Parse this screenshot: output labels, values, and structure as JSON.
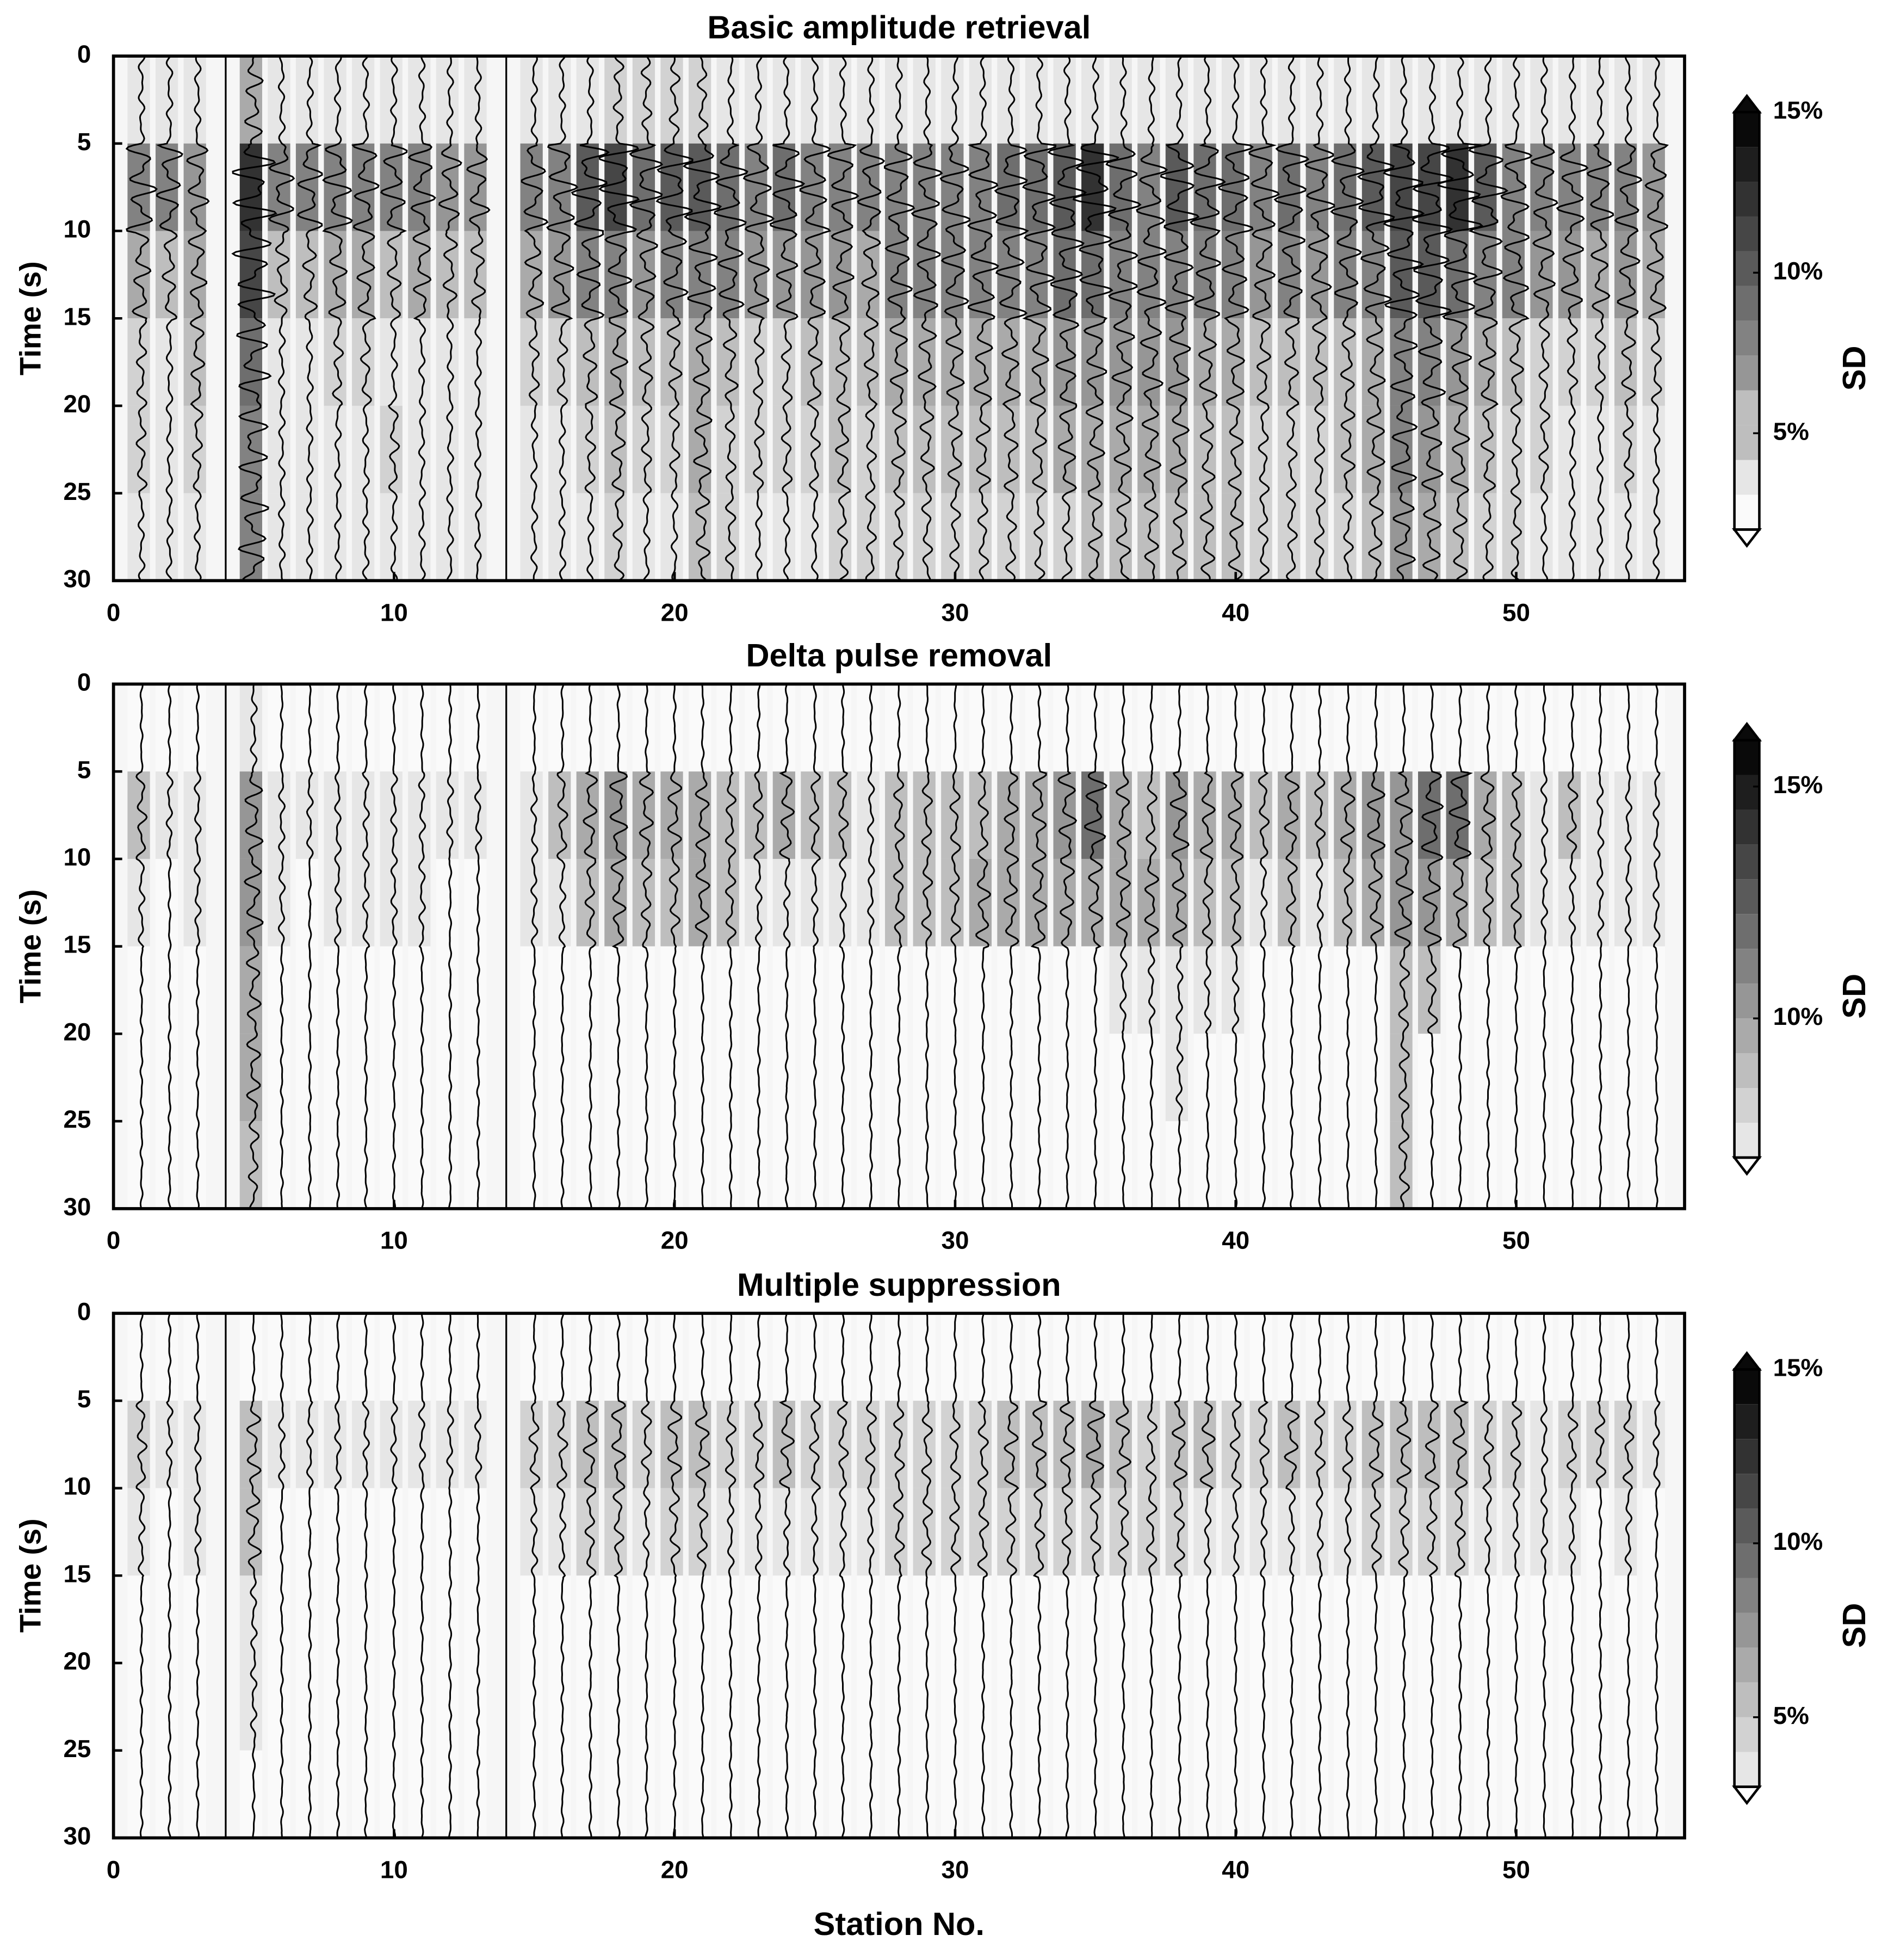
{
  "chart_data": [
    {
      "type": "heatmap-traces",
      "title": "Basic amplitude retrieval",
      "y_label": "Time (s)",
      "xlim": [
        0,
        56
      ],
      "xticks": [
        0,
        10,
        20,
        30,
        40,
        50
      ],
      "ylim": [
        0,
        30
      ],
      "yticks": [
        0,
        5,
        10,
        15,
        20,
        25,
        30
      ],
      "stations": [
        1,
        2,
        3,
        4,
        5,
        6,
        7,
        8,
        9,
        10,
        11,
        12,
        13,
        14,
        15,
        16,
        17,
        18,
        19,
        20,
        21,
        22,
        23,
        24,
        25,
        26,
        27,
        28,
        29,
        30,
        31,
        32,
        33,
        34,
        35,
        36,
        37,
        38,
        39,
        40,
        41,
        42,
        43,
        44,
        45,
        46,
        47,
        48,
        49,
        50,
        51,
        52,
        53,
        54,
        55
      ],
      "time_bins": [
        0,
        5,
        10,
        15,
        20,
        25,
        30
      ],
      "sd": [
        [
          3,
          3,
          3,
          null,
          6,
          3,
          3,
          3,
          3,
          3,
          3,
          3,
          3,
          null,
          3,
          3,
          3,
          4,
          4,
          4,
          4,
          3,
          3,
          3,
          3,
          3,
          3,
          3,
          3,
          3,
          3,
          3,
          3,
          3,
          3,
          3,
          3,
          3,
          3,
          3,
          3,
          3,
          3,
          3,
          3,
          3,
          3,
          3,
          3,
          3,
          3,
          3,
          3,
          3,
          3
        ],
        [
          9,
          8,
          7,
          null,
          13,
          8,
          8,
          9,
          8,
          8,
          8,
          7,
          7,
          null,
          8,
          9,
          11,
          12,
          10,
          11,
          11,
          10,
          9,
          10,
          9,
          9,
          8,
          9,
          9,
          9,
          9,
          10,
          10,
          11,
          13,
          10,
          9,
          11,
          10,
          10,
          9,
          10,
          9,
          10,
          11,
          12,
          12,
          13,
          11,
          9,
          8,
          9,
          8,
          8,
          7
        ],
        [
          6,
          5,
          6,
          null,
          12,
          5,
          5,
          6,
          6,
          5,
          6,
          5,
          5,
          null,
          6,
          7,
          8,
          8,
          7,
          8,
          9,
          8,
          7,
          7,
          7,
          7,
          6,
          8,
          8,
          8,
          9,
          9,
          9,
          10,
          10,
          9,
          9,
          9,
          8,
          8,
          7,
          8,
          7,
          8,
          9,
          11,
          11,
          10,
          9,
          8,
          7,
          7,
          6,
          7,
          6
        ],
        [
          4,
          3,
          5,
          null,
          10,
          3,
          3,
          4,
          4,
          3,
          3,
          3,
          3,
          null,
          4,
          4,
          5,
          6,
          5,
          5,
          6,
          5,
          4,
          4,
          5,
          5,
          5,
          6,
          6,
          6,
          6,
          6,
          6,
          7,
          7,
          7,
          7,
          7,
          6,
          6,
          5,
          5,
          5,
          5,
          6,
          8,
          8,
          7,
          6,
          5,
          4,
          4,
          4,
          5,
          4
        ],
        [
          4,
          3,
          4,
          null,
          9,
          3,
          3,
          3,
          3,
          4,
          3,
          3,
          3,
          null,
          3,
          3,
          4,
          5,
          4,
          4,
          6,
          4,
          4,
          4,
          4,
          5,
          4,
          5,
          5,
          5,
          5,
          5,
          5,
          6,
          6,
          6,
          6,
          6,
          5,
          5,
          4,
          4,
          4,
          5,
          6,
          8,
          7,
          6,
          5,
          4,
          4,
          3,
          3,
          4,
          3
        ],
        [
          3,
          3,
          3,
          null,
          9,
          3,
          3,
          3,
          3,
          3,
          3,
          3,
          3,
          null,
          3,
          3,
          3,
          4,
          3,
          3,
          5,
          4,
          3,
          3,
          3,
          4,
          4,
          4,
          4,
          4,
          4,
          4,
          4,
          4,
          5,
          5,
          5,
          5,
          5,
          5,
          4,
          4,
          4,
          4,
          5,
          7,
          6,
          5,
          4,
          4,
          3,
          3,
          3,
          3,
          3
        ]
      ],
      "colorbar": {
        "label": "SD",
        "lim": [
          2,
          15
        ],
        "ticks": [
          {
            "value": 5,
            "label": "5%"
          },
          {
            "value": 10,
            "label": "10%"
          },
          {
            "value": 15,
            "label": "15%"
          }
        ]
      }
    },
    {
      "type": "heatmap-traces",
      "title": "Delta pulse removal",
      "y_label": "Time (s)",
      "xlim": [
        0,
        56
      ],
      "xticks": [
        0,
        10,
        20,
        30,
        40,
        50
      ],
      "ylim": [
        0,
        30
      ],
      "yticks": [
        0,
        5,
        10,
        15,
        20,
        25,
        30
      ],
      "stations": [
        1,
        2,
        3,
        4,
        5,
        6,
        7,
        8,
        9,
        10,
        11,
        12,
        13,
        14,
        15,
        16,
        17,
        18,
        19,
        20,
        21,
        22,
        23,
        24,
        25,
        26,
        27,
        28,
        29,
        30,
        31,
        32,
        33,
        34,
        35,
        36,
        37,
        38,
        39,
        40,
        41,
        42,
        43,
        44,
        45,
        46,
        47,
        48,
        49,
        50,
        51,
        52,
        53,
        54,
        55
      ],
      "time_bins": [
        0,
        5,
        10,
        15,
        20,
        25,
        30
      ],
      "sd": [
        [
          7,
          7,
          7,
          null,
          8,
          7,
          7,
          7,
          7,
          7,
          7,
          7,
          7,
          null,
          7,
          7,
          7,
          7,
          7,
          7,
          7,
          7,
          7,
          7,
          7,
          7,
          7,
          7,
          7,
          7,
          7,
          7,
          7,
          7,
          7,
          7,
          7,
          7,
          7,
          7,
          7,
          7,
          7,
          7,
          7,
          7,
          7,
          7,
          7,
          7,
          7,
          7,
          7,
          7,
          7
        ],
        [
          9,
          8,
          8,
          null,
          11,
          8,
          8,
          8,
          8,
          8,
          8,
          8,
          8,
          null,
          8,
          9,
          10,
          11,
          10,
          10,
          10,
          9,
          9,
          10,
          9,
          9,
          8,
          9,
          9,
          9,
          9,
          10,
          10,
          11,
          12,
          10,
          9,
          11,
          10,
          10,
          9,
          10,
          9,
          10,
          11,
          11,
          12,
          12,
          10,
          9,
          8,
          9,
          8,
          8,
          8
        ],
        [
          8,
          7,
          8,
          null,
          11,
          8,
          7,
          8,
          8,
          8,
          8,
          7,
          7,
          null,
          8,
          8,
          9,
          10,
          9,
          9,
          10,
          9,
          8,
          8,
          8,
          8,
          8,
          9,
          9,
          9,
          10,
          10,
          10,
          10,
          10,
          10,
          10,
          10,
          9,
          9,
          8,
          9,
          8,
          9,
          10,
          11,
          11,
          10,
          9,
          9,
          8,
          8,
          8,
          8,
          8
        ],
        [
          7,
          7,
          7,
          null,
          10,
          7,
          7,
          7,
          7,
          7,
          7,
          7,
          7,
          null,
          7,
          7,
          7,
          7,
          7,
          7,
          7,
          7,
          7,
          7,
          7,
          7,
          7,
          7,
          7,
          7,
          7,
          7,
          7,
          7,
          7,
          8,
          8,
          8,
          8,
          8,
          7,
          7,
          7,
          7,
          7,
          9,
          9,
          7,
          7,
          7,
          7,
          7,
          7,
          7,
          7
        ],
        [
          7,
          7,
          7,
          null,
          10,
          7,
          7,
          7,
          7,
          7,
          7,
          7,
          7,
          null,
          7,
          7,
          7,
          7,
          7,
          7,
          7,
          7,
          7,
          7,
          7,
          7,
          7,
          7,
          7,
          7,
          7,
          7,
          7,
          7,
          7,
          7,
          7,
          8,
          7,
          7,
          7,
          7,
          7,
          7,
          7,
          9,
          7,
          7,
          7,
          7,
          7,
          7,
          7,
          7,
          7
        ],
        [
          7,
          7,
          7,
          null,
          9,
          7,
          7,
          7,
          7,
          7,
          7,
          7,
          7,
          null,
          7,
          7,
          7,
          7,
          7,
          7,
          7,
          7,
          7,
          7,
          7,
          7,
          7,
          7,
          7,
          7,
          7,
          7,
          7,
          7,
          7,
          7,
          7,
          7,
          7,
          7,
          7,
          7,
          7,
          7,
          7,
          9,
          7,
          7,
          7,
          7,
          7,
          7,
          7,
          7,
          7
        ]
      ],
      "colorbar": {
        "label": "SD",
        "lim": [
          7,
          16
        ],
        "ticks": [
          {
            "value": 10,
            "label": "10%"
          },
          {
            "value": 15,
            "label": "15%"
          }
        ]
      }
    },
    {
      "type": "heatmap-traces",
      "title": "Multiple suppression",
      "y_label": "Time (s)",
      "x_label": "Station No.",
      "xlim": [
        0,
        56
      ],
      "xticks": [
        0,
        10,
        20,
        30,
        40,
        50
      ],
      "ylim": [
        0,
        30
      ],
      "yticks": [
        0,
        5,
        10,
        15,
        20,
        25,
        30
      ],
      "stations": [
        1,
        2,
        3,
        4,
        5,
        6,
        7,
        8,
        9,
        10,
        11,
        12,
        13,
        14,
        15,
        16,
        17,
        18,
        19,
        20,
        21,
        22,
        23,
        24,
        25,
        26,
        27,
        28,
        29,
        30,
        31,
        32,
        33,
        34,
        35,
        36,
        37,
        38,
        39,
        40,
        41,
        42,
        43,
        44,
        45,
        46,
        47,
        48,
        49,
        50,
        51,
        52,
        53,
        54,
        55
      ],
      "time_bins": [
        0,
        5,
        10,
        15,
        20,
        25,
        30
      ],
      "sd": [
        [
          3,
          3,
          3,
          null,
          3,
          3,
          3,
          3,
          3,
          3,
          3,
          3,
          3,
          null,
          3,
          3,
          3,
          3,
          3,
          3,
          3,
          3,
          3,
          3,
          3,
          3,
          3,
          3,
          3,
          3,
          3,
          3,
          3,
          3,
          3,
          3,
          3,
          3,
          3,
          3,
          3,
          3,
          3,
          3,
          3,
          3,
          3,
          3,
          3,
          3,
          3,
          3,
          3,
          3,
          3
        ],
        [
          5,
          4,
          4,
          null,
          6,
          4,
          4,
          4,
          4,
          4,
          4,
          4,
          4,
          null,
          5,
          5,
          6,
          6,
          5,
          6,
          6,
          5,
          5,
          6,
          5,
          5,
          5,
          5,
          5,
          5,
          5,
          6,
          6,
          6,
          7,
          6,
          5,
          6,
          6,
          5,
          5,
          6,
          5,
          5,
          6,
          6,
          6,
          6,
          5,
          5,
          4,
          5,
          5,
          5,
          4
        ],
        [
          4,
          3,
          4,
          null,
          6,
          3,
          3,
          3,
          3,
          3,
          3,
          3,
          3,
          null,
          4,
          4,
          5,
          5,
          4,
          5,
          5,
          4,
          4,
          4,
          4,
          4,
          4,
          5,
          5,
          5,
          5,
          5,
          5,
          5,
          5,
          5,
          5,
          5,
          4,
          4,
          4,
          4,
          4,
          4,
          5,
          5,
          5,
          5,
          4,
          4,
          4,
          4,
          3,
          4,
          3
        ],
        [
          3,
          3,
          3,
          null,
          4,
          3,
          3,
          3,
          3,
          3,
          3,
          3,
          3,
          null,
          3,
          3,
          3,
          3,
          3,
          3,
          3,
          3,
          3,
          3,
          3,
          3,
          3,
          3,
          3,
          3,
          3,
          3,
          3,
          3,
          3,
          3,
          3,
          3,
          3,
          3,
          3,
          3,
          3,
          3,
          3,
          3,
          3,
          3,
          3,
          3,
          3,
          3,
          3,
          3,
          3
        ],
        [
          3,
          3,
          3,
          null,
          4,
          3,
          3,
          3,
          3,
          3,
          3,
          3,
          3,
          null,
          3,
          3,
          3,
          3,
          3,
          3,
          3,
          3,
          3,
          3,
          3,
          3,
          3,
          3,
          3,
          3,
          3,
          3,
          3,
          3,
          3,
          3,
          3,
          3,
          3,
          3,
          3,
          3,
          3,
          3,
          3,
          3,
          3,
          3,
          3,
          3,
          3,
          3,
          3,
          3,
          3
        ],
        [
          3,
          3,
          3,
          null,
          3,
          3,
          3,
          3,
          3,
          3,
          3,
          3,
          3,
          null,
          3,
          3,
          3,
          3,
          3,
          3,
          3,
          3,
          3,
          3,
          3,
          3,
          3,
          3,
          3,
          3,
          3,
          3,
          3,
          3,
          3,
          3,
          3,
          3,
          3,
          3,
          3,
          3,
          3,
          3,
          3,
          3,
          3,
          3,
          3,
          3,
          3,
          3,
          3,
          3,
          3
        ]
      ],
      "colorbar": {
        "label": "SD",
        "lim": [
          3,
          15
        ],
        "ticks": [
          {
            "value": 5,
            "label": "5%"
          },
          {
            "value": 10,
            "label": "10%"
          },
          {
            "value": 15,
            "label": "15%"
          }
        ]
      }
    }
  ]
}
